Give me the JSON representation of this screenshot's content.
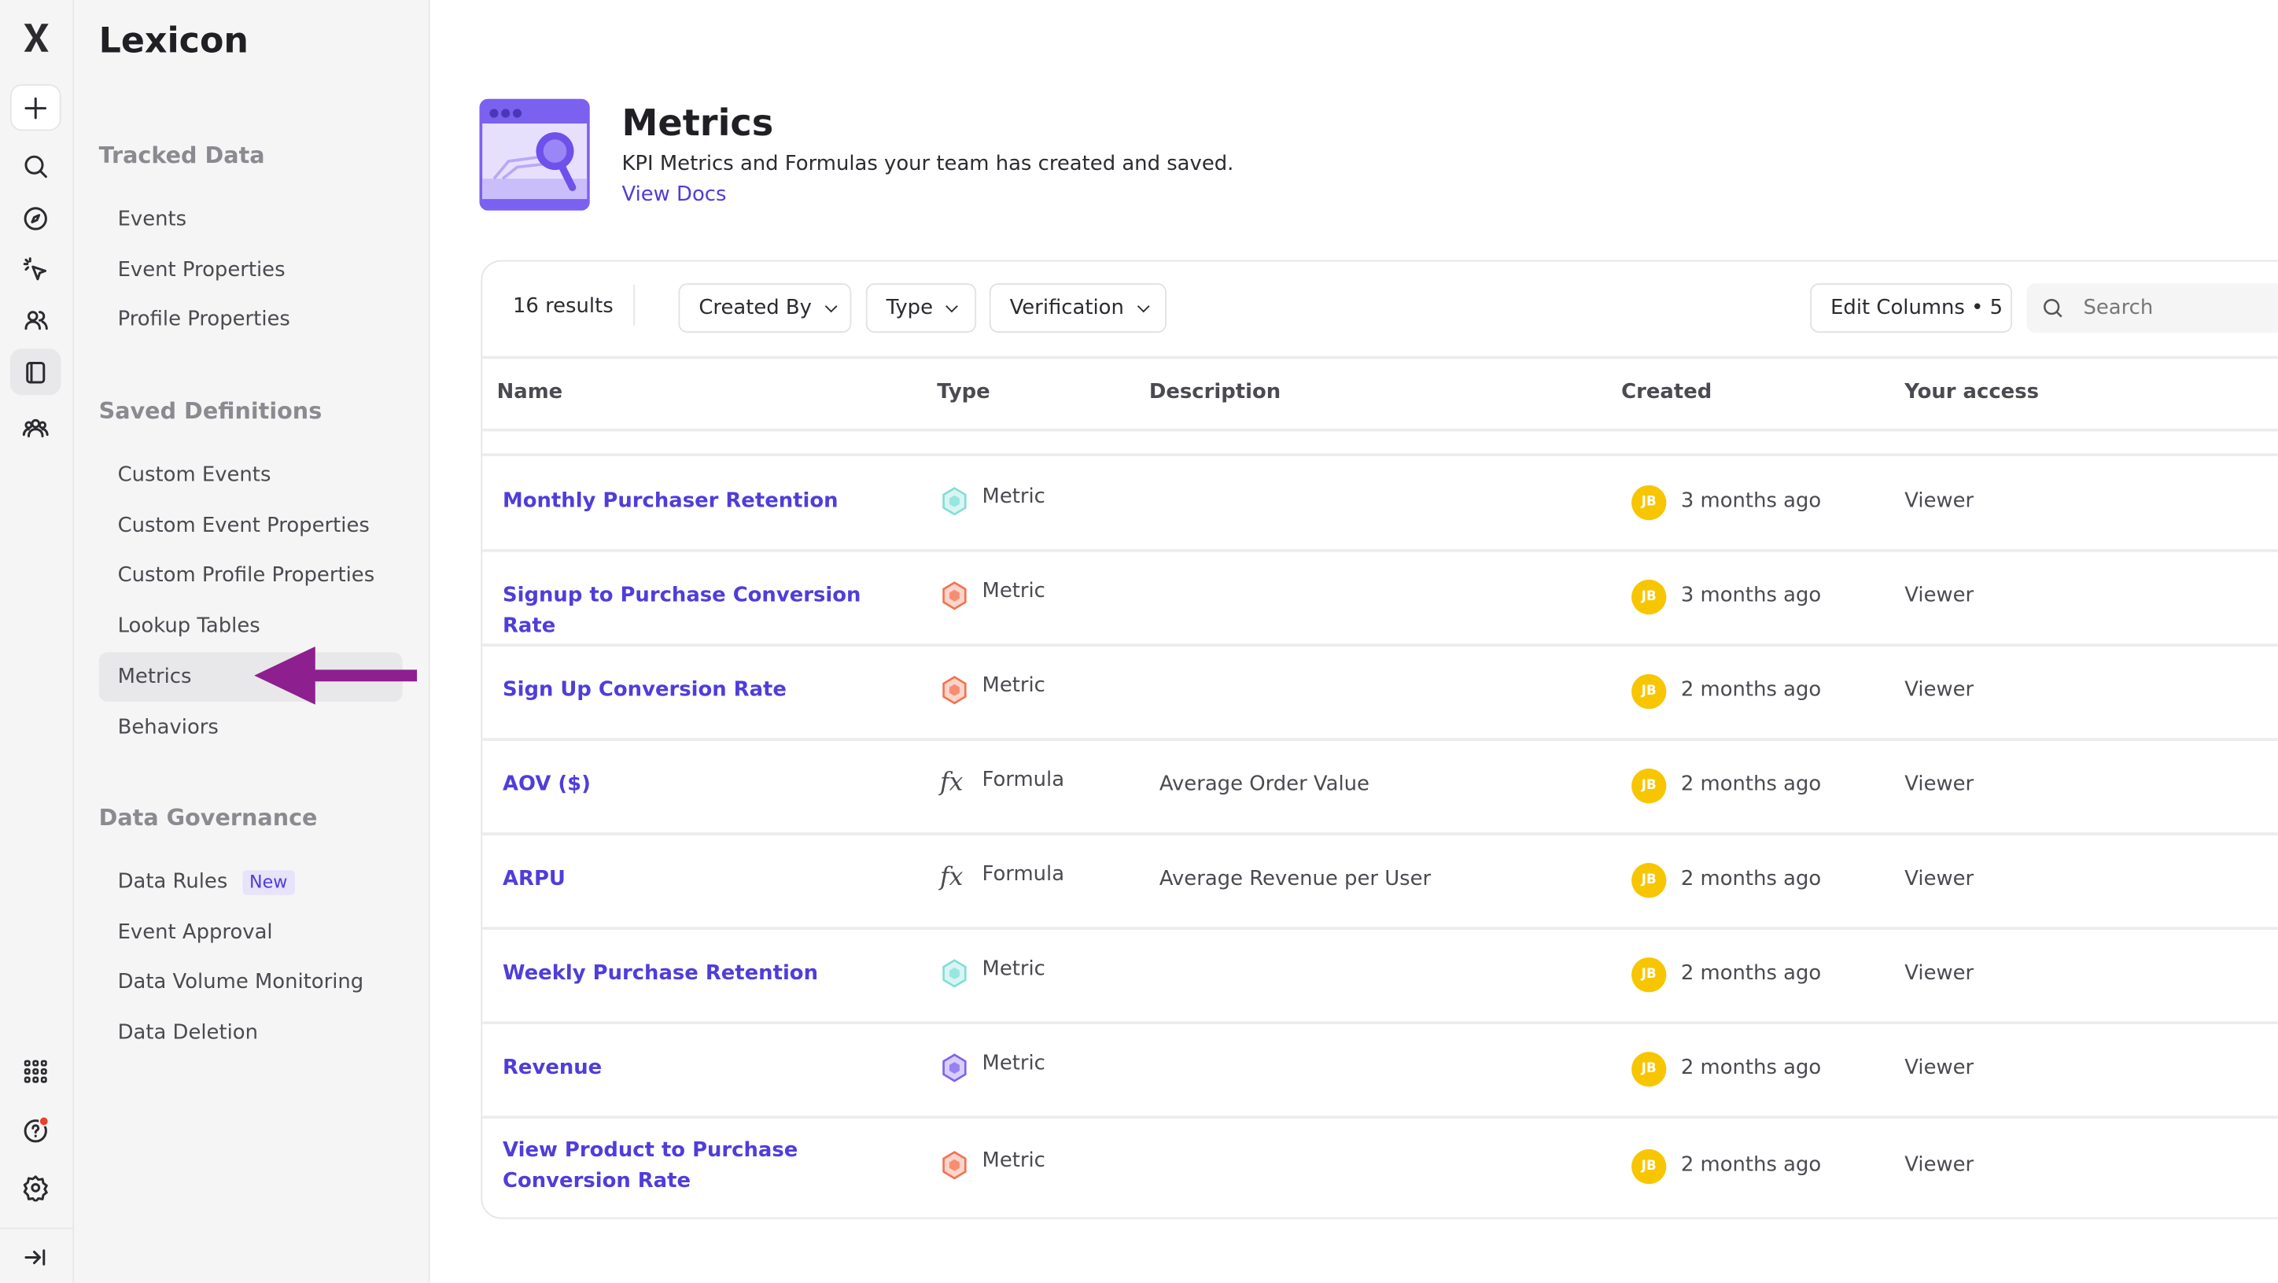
{
  "rail": {
    "icons": [
      "logo-icon",
      "plus-icon",
      "search-icon",
      "compass-icon",
      "click-icon",
      "users-icon",
      "lexicon-icon",
      "teams-icon",
      "apps-grid-icon",
      "help-icon",
      "gear-icon",
      "expand-icon"
    ]
  },
  "sidebar": {
    "title": "Lexicon",
    "sections": [
      {
        "label": "Tracked Data",
        "items": [
          {
            "label": "Events"
          },
          {
            "label": "Event Properties"
          },
          {
            "label": "Profile Properties"
          }
        ]
      },
      {
        "label": "Saved Definitions",
        "items": [
          {
            "label": "Custom Events"
          },
          {
            "label": "Custom Event Properties"
          },
          {
            "label": "Custom Profile Properties"
          },
          {
            "label": "Lookup Tables"
          },
          {
            "label": "Metrics",
            "active": true
          },
          {
            "label": "Behaviors"
          }
        ]
      },
      {
        "label": "Data Governance",
        "items": [
          {
            "label": "Data Rules",
            "badge": "New"
          },
          {
            "label": "Event Approval"
          },
          {
            "label": "Data Volume Monitoring"
          },
          {
            "label": "Data Deletion"
          }
        ]
      }
    ]
  },
  "header": {
    "title": "Metrics",
    "subtitle": "KPI Metrics and Formulas your team has created and saved.",
    "link": "View Docs"
  },
  "toolbar": {
    "results": "16 results",
    "created_by": "Created By",
    "type": "Type",
    "verification": "Verification",
    "edit_columns": "Edit Columns • 5",
    "search_placeholder": "Search"
  },
  "table": {
    "headers": [
      "Name",
      "Type",
      "Description",
      "Created",
      "Your access"
    ],
    "rows": [
      {
        "name": "Monthly Purchaser Retention",
        "type": "Metric",
        "icon_color": "#7fded6",
        "description": "",
        "avatar": "JB",
        "created": "3 months ago",
        "access": "Viewer"
      },
      {
        "name": "Signup to Purchase Conversion Rate",
        "type": "Metric",
        "icon_color": "#f2714f",
        "description": "",
        "avatar": "JB",
        "created": "3 months ago",
        "access": "Viewer"
      },
      {
        "name": "Sign Up Conversion Rate",
        "type": "Metric",
        "icon_color": "#f2714f",
        "description": "",
        "avatar": "JB",
        "created": "2 months ago",
        "access": "Viewer"
      },
      {
        "name": "AOV ($)",
        "type": "Formula",
        "icon_color": "",
        "description": "Average Order Value",
        "avatar": "JB",
        "created": "2 months ago",
        "access": "Viewer"
      },
      {
        "name": "ARPU",
        "type": "Formula",
        "icon_color": "",
        "description": "Average Revenue per User",
        "avatar": "JB",
        "created": "2 months ago",
        "access": "Viewer"
      },
      {
        "name": "Weekly Purchase Retention",
        "type": "Metric",
        "icon_color": "#7fded6",
        "description": "",
        "avatar": "JB",
        "created": "2 months ago",
        "access": "Viewer"
      },
      {
        "name": "Revenue",
        "type": "Metric",
        "icon_color": "#7b61f0",
        "description": "",
        "avatar": "JB",
        "created": "2 months ago",
        "access": "Viewer"
      },
      {
        "name": "View Product to Purchase Conversion Rate",
        "type": "Metric",
        "icon_color": "#f2714f",
        "description": "",
        "avatar": "JB",
        "created": "2 months ago",
        "access": "Viewer"
      }
    ]
  },
  "colors": {
    "accent": "#4f3ddb",
    "avatar": "#f7c600",
    "annotation_arrow": "#8e1f8e"
  }
}
